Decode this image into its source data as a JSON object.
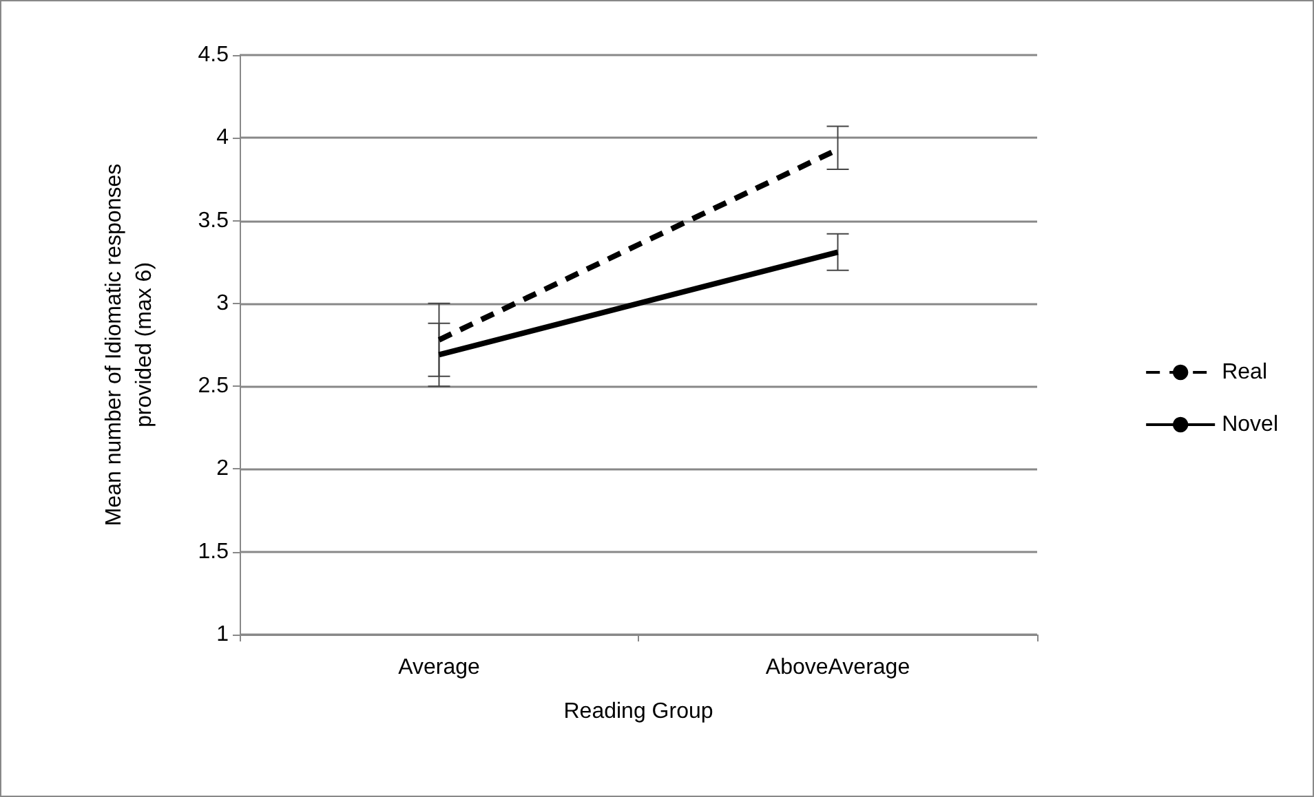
{
  "chart_data": {
    "type": "line",
    "xlabel": "Reading Group",
    "ylabel": "Mean number of Idiomatic responses\nprovided (max 6)",
    "categories": [
      "Average",
      "AboveAverage"
    ],
    "series": [
      {
        "name": "Real",
        "color": "#000000",
        "line_style": "dashed",
        "values": [
          2.78,
          3.93
        ],
        "errors": [
          [
            2.56,
            3.0
          ],
          [
            3.81,
            4.07
          ]
        ]
      },
      {
        "name": "Novel",
        "color": "#000000",
        "line_style": "solid",
        "values": [
          2.69,
          3.31
        ],
        "errors": [
          [
            2.5,
            2.88
          ],
          [
            3.2,
            3.42
          ]
        ]
      }
    ],
    "ylim": [
      1,
      4.5
    ],
    "yticks": [
      1,
      1.5,
      2,
      2.5,
      3,
      3.5,
      4,
      4.5
    ],
    "grid": "y",
    "legend": "right",
    "marker": "none"
  }
}
